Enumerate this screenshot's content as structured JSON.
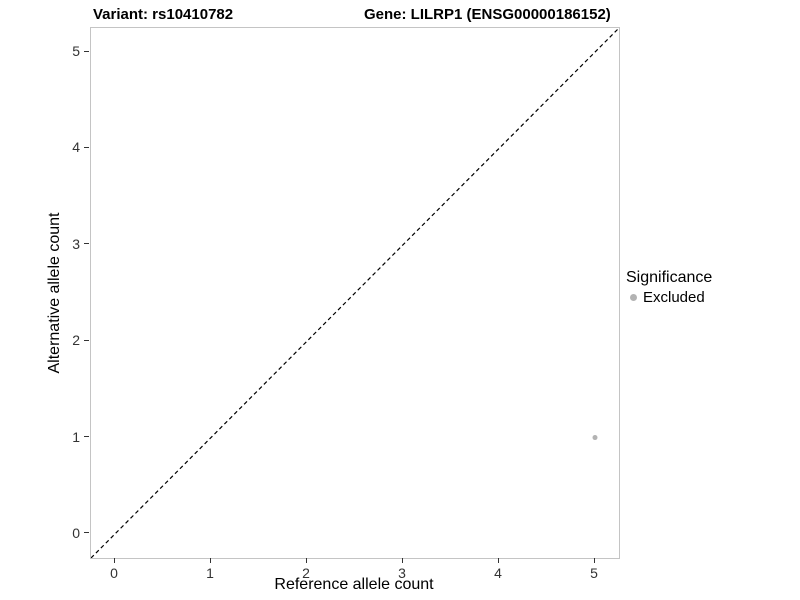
{
  "titles": {
    "variant": "Variant: rs10410782",
    "gene": "Gene: LILRP1 (ENSG00000186152)"
  },
  "chart_data": {
    "type": "scatter",
    "title": "",
    "xlabel": "Reference allele count",
    "ylabel": "Alternative allele count",
    "xlim": [
      -0.25,
      5.25
    ],
    "ylim": [
      -0.25,
      5.25
    ],
    "xticks": [
      0,
      1,
      2,
      3,
      4,
      5
    ],
    "yticks": [
      0,
      1,
      2,
      3,
      4,
      5
    ],
    "grid": false,
    "panel_border_color": "#c4c4c4",
    "identity_line": {
      "style": "dashed",
      "color": "#000000",
      "from": [
        -0.25,
        -0.25
      ],
      "to": [
        5.25,
        5.25
      ]
    },
    "series": [
      {
        "name": "Excluded",
        "color": "#b3b3b3",
        "point_radius": 2.5,
        "points": [
          {
            "x": 5,
            "y": 1
          }
        ]
      }
    ],
    "legend": {
      "position": "right",
      "title": "Significance",
      "entries": [
        {
          "label": "Excluded",
          "color": "#b3b3b3"
        }
      ]
    }
  }
}
